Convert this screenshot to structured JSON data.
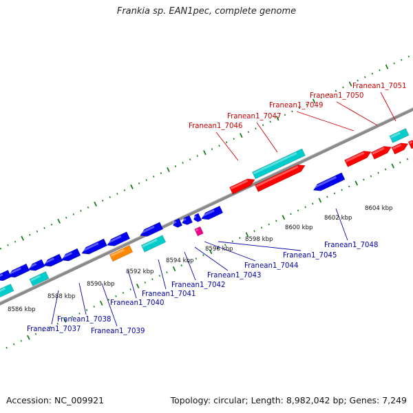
{
  "title": "Frankia sp. EAN1pec, complete genome",
  "footer": {
    "accession": "Accession: NC_009921",
    "topology": "Topology: circular; Length: 8,982,042 bp; Genes: 7,249"
  },
  "colors": {
    "red": "#ff0000",
    "blue": "#0000ee",
    "cyan": "#00cccc",
    "orange": "#ff8800",
    "magenta": "#ee0088",
    "backbone": "#8a8a8a",
    "tick": "#1a7a1a",
    "label_red": "#cc0000",
    "label_blue": "#0000aa"
  },
  "scale": {
    "kbp_labels": [
      "8586 kbp",
      "8588 kbp",
      "8590 kbp",
      "8592 kbp",
      "8594 kbp",
      "8596 kbp",
      "8598 kbp",
      "8600 kbp",
      "8602 kbp",
      "8604 kbp"
    ]
  },
  "labels_top": [
    "Franean1_7046",
    "Franean1_7047",
    "Franean1_7049",
    "Franean1_7050",
    "Franean1_7051"
  ],
  "labels_bottom": [
    "Franean1_7037",
    "Franean1_7038",
    "Franean1_7039",
    "Franean1_7040",
    "Franean1_7041",
    "Franean1_7042",
    "Franean1_7043",
    "Franean1_7044",
    "Franean1_7045",
    "Franean1_7048"
  ]
}
